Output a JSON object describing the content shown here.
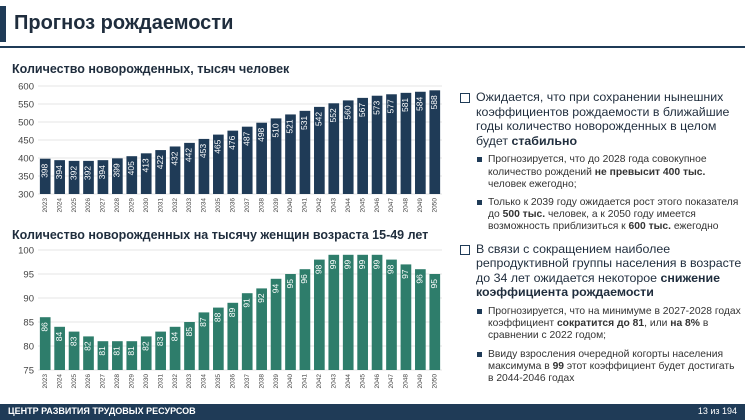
{
  "page": {
    "title": "Прогноз рождаемости",
    "footer_org": "ЦЕНТР РАЗВИТИЯ ТРУДОВЫХ РЕСУРСОВ",
    "page_indicator": "13 из 194"
  },
  "colors": {
    "navy": "#1f3b57",
    "teal": "#2e7d6b",
    "grid": "#dcdcdc"
  },
  "chart_data": [
    {
      "type": "bar",
      "title": "Количество новорожденных, тысяч человек",
      "categories": [
        "2023",
        "2024",
        "2025",
        "2026",
        "2027",
        "2028",
        "2029",
        "2030",
        "2031",
        "2032",
        "2033",
        "2034",
        "2035",
        "2036",
        "2037",
        "2038",
        "2039",
        "2040",
        "2041",
        "2042",
        "2043",
        "2044",
        "2045",
        "2046",
        "2047",
        "2048",
        "2049",
        "2050"
      ],
      "values": [
        398,
        394,
        392,
        392,
        394,
        399,
        405,
        413,
        422,
        432,
        442,
        453,
        465,
        476,
        487,
        498,
        510,
        521,
        531,
        542,
        552,
        560,
        567,
        573,
        577,
        581,
        584,
        588
      ],
      "yticks": [
        300,
        350,
        400,
        450,
        500,
        550,
        600
      ],
      "ylim": [
        300,
        600
      ],
      "grid": true,
      "color": "#1f3b57"
    },
    {
      "type": "bar",
      "title": "Количество новорожденных на тысячу женщин возраста 15-49 лет",
      "categories": [
        "2023",
        "2024",
        "2025",
        "2026",
        "2027",
        "2028",
        "2029",
        "2030",
        "2031",
        "2032",
        "2033",
        "2034",
        "2035",
        "2036",
        "2037",
        "2038",
        "2039",
        "2040",
        "2041",
        "2042",
        "2043",
        "2044",
        "2045",
        "2046",
        "2047",
        "2048",
        "2049",
        "2050"
      ],
      "values": [
        86,
        84,
        83,
        82,
        81,
        81,
        81,
        82,
        83,
        84,
        85,
        87,
        88,
        89,
        91,
        92,
        94,
        95,
        96,
        98,
        99,
        99,
        99,
        99,
        98,
        97,
        96,
        95
      ],
      "yticks": [
        75,
        80,
        85,
        90,
        95,
        100
      ],
      "ylim": [
        75,
        100
      ],
      "grid": true,
      "color": "#2e7d6b"
    }
  ],
  "notes": {
    "b1": {
      "before": "Ожидается, что при сохранении нынешних коэффициентов рождаемости в ближайшие годы количество новорожденных в целом будет ",
      "bold": "стабильно",
      "subs": [
        {
          "t1": "Прогнозируется, что до 2028 года совокупное количество рождений ",
          "bold1": "не превысит 400 тыс.",
          "t2": " человек ежегодно;",
          "bold2": "",
          "t3": ""
        },
        {
          "t1": "Только к 2039 году ожидается рост этого показателя до ",
          "bold1": "500 тыс.",
          "t2": " человек, а к 2050 году имеется возможность приблизиться к ",
          "bold2": "600 тыс.",
          "t3": " ежегодно"
        }
      ]
    },
    "b2": {
      "before": "В связи с сокращением наиболее репродуктивной группы населения в возрасте до 34 лет ожидается некоторое ",
      "bold": "снижение коэффициента рождаемости",
      "subs": [
        {
          "t1": "Прогнозируется, что на минимуме в 2027-2028 годах коэффициент ",
          "bold1": "сократится до 81",
          "t2": ", или ",
          "bold2": "на 8%",
          "t3": " в сравнении с 2022 годом;"
        },
        {
          "t1": "Ввиду взросления очередной когорты населения максимума в ",
          "bold1": "99",
          "t2": " этот коэффициент будет достигать в 2044-2046 годах",
          "bold2": "",
          "t3": ""
        }
      ]
    }
  }
}
